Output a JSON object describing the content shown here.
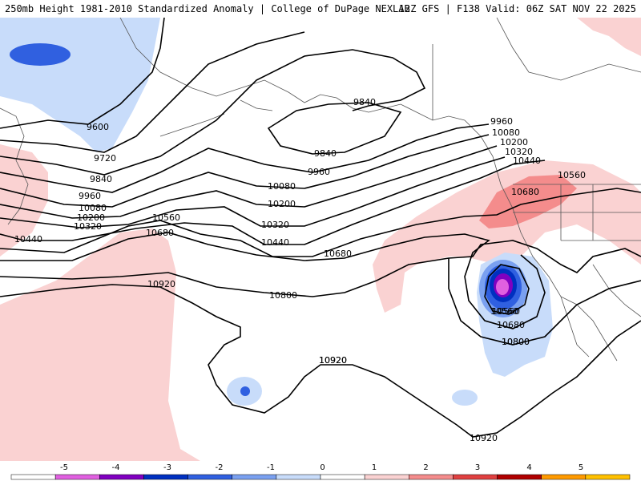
{
  "header": {
    "title_left": "250mb Height 1981-2010 Standardized Anomaly | College of DuPage NEXLAB",
    "title_right": "12Z GFS | F138 Valid: 06Z SAT NOV 22 2025"
  },
  "contours": {
    "color": "#000000",
    "labels": [
      "9600",
      "9720",
      "9840",
      "9960",
      "10080",
      "10200",
      "10320",
      "10440",
      "10560",
      "10680",
      "10800",
      "10920",
      "9840",
      "9840",
      "9960",
      "10080",
      "10200",
      "10320",
      "10440",
      "10560",
      "10680",
      "10800",
      "10920",
      "9960",
      "10080",
      "10200",
      "10320",
      "10440",
      "10560",
      "10680",
      "10560",
      "10680",
      "10800",
      "10920",
      "10920"
    ]
  },
  "anomaly_colors": {
    "strong_neg": "#e060e0",
    "neg5": "#8000c0",
    "neg4": "#0030c0",
    "neg3": "#3060e0",
    "neg2": "#7aa0f0",
    "neg1": "#c8dcfa",
    "pos1": "#fad2d2",
    "pos2": "#f48c8c",
    "pos3": "#e04040",
    "pos4": "#b00000",
    "pos5": "#ff9a00",
    "pos6": "#ffc000"
  },
  "legend": {
    "ticks": [
      "-5",
      "-4",
      "-3",
      "-2",
      "-1",
      "0",
      "1",
      "2",
      "3",
      "4",
      "5"
    ],
    "colors": [
      "#ffffff",
      "#e060e0",
      "#8000c0",
      "#0030c0",
      "#3060e0",
      "#7aa0f0",
      "#c8dcfa",
      "#ffffff",
      "#fad2d2",
      "#f48c8c",
      "#e04040",
      "#b00000",
      "#ff9a00",
      "#ffc000"
    ]
  }
}
